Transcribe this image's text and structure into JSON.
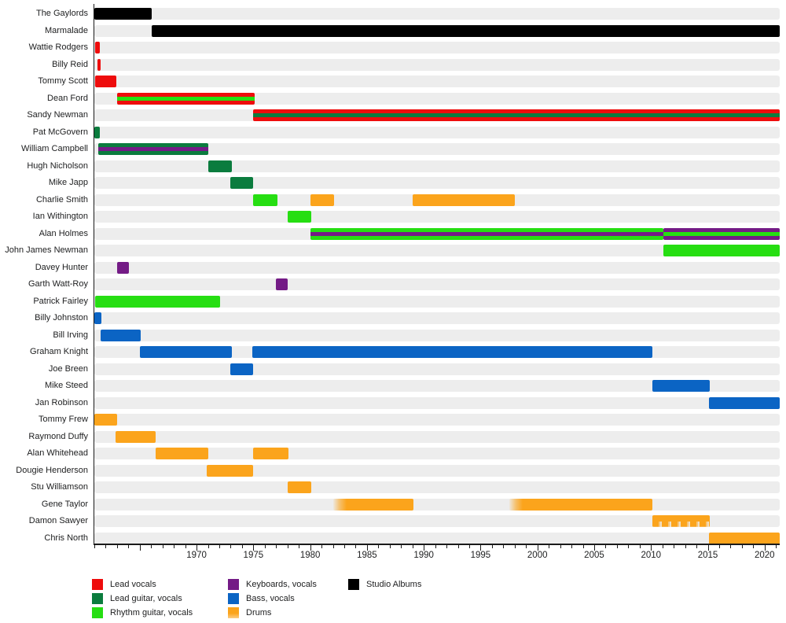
{
  "chart_data": {
    "type": "bar",
    "variant": "timeline_gantt",
    "description": "Band members timeline (Gantt-style) with roles shown by bar colors and studio album eras in black",
    "x_axis": {
      "min": 1961,
      "max": 2021.3,
      "labeled_ticks": [
        "1970",
        "1975",
        "1980",
        "1985",
        "1990",
        "1995",
        "2000",
        "2005",
        "2010",
        "2015",
        "2020"
      ],
      "labeled_tick_years": [
        1970,
        1975,
        1980,
        1985,
        1990,
        1995,
        2000,
        2005,
        2010,
        2015,
        2020
      ],
      "minor_tick_every": 1
    },
    "palette": {
      "black": "#000000",
      "red": "#ee0c0c",
      "darkgreen": "#0b7c3e",
      "lime": "#26de12",
      "purple": "#741b86",
      "blue": "#0b64c4",
      "orange": "#fba41c",
      "track": "#ededed",
      "axis": "#1a1a1a",
      "text": "#202122"
    },
    "legend": [
      {
        "label": "Lead vocals",
        "color": "red",
        "col": 0,
        "row": 0
      },
      {
        "label": "Lead guitar, vocals",
        "color": "darkgreen",
        "col": 0,
        "row": 1
      },
      {
        "label": "Rhythm guitar, vocals",
        "color": "lime",
        "col": 0,
        "row": 2
      },
      {
        "label": "Keyboards, vocals",
        "color": "purple",
        "col": 1,
        "row": 0
      },
      {
        "label": "Bass, vocals",
        "color": "blue",
        "col": 1,
        "row": 1
      },
      {
        "label": "Drums",
        "color": "orange",
        "col": 1,
        "row": 2
      },
      {
        "label": "Studio Albums",
        "color": "black",
        "col": 2,
        "row": 0
      }
    ],
    "rows": [
      {
        "name": "The Gaylords",
        "segments": [
          {
            "from": 1961,
            "to": 1966.05,
            "color": "black"
          }
        ]
      },
      {
        "name": "Marmalade",
        "segments": [
          {
            "from": 1966.05,
            "to": 2021.3,
            "color": "black"
          }
        ]
      },
      {
        "name": "Wattie Rodgers",
        "segments": [
          {
            "from": 1961.05,
            "to": 1961.45,
            "color": "red"
          }
        ]
      },
      {
        "name": "Billy Reid",
        "segments": [
          {
            "from": 1961.25,
            "to": 1961.55,
            "color": "red"
          }
        ]
      },
      {
        "name": "Tommy Scott",
        "segments": [
          {
            "from": 1961.1,
            "to": 1962.95,
            "color": "red"
          }
        ]
      },
      {
        "name": "Dean Ford",
        "segments": [
          {
            "from": 1963,
            "to": 1975.1,
            "color": "red",
            "stripe": "lime"
          }
        ]
      },
      {
        "name": "Sandy Newman",
        "segments": [
          {
            "from": 1975,
            "to": 2021.3,
            "color": "red",
            "stripe": "darkgreen"
          }
        ]
      },
      {
        "name": "Pat McGovern",
        "segments": [
          {
            "from": 1961,
            "to": 1961.45,
            "color": "darkgreen"
          }
        ]
      },
      {
        "name": "William Campbell",
        "segments": [
          {
            "from": 1961.35,
            "to": 1971,
            "color": "darkgreen",
            "stripe": "purple"
          }
        ]
      },
      {
        "name": "Hugh Nicholson",
        "segments": [
          {
            "from": 1971,
            "to": 1973.1,
            "color": "darkgreen"
          }
        ]
      },
      {
        "name": "Mike Japp",
        "segments": [
          {
            "from": 1973,
            "to": 1975,
            "color": "darkgreen"
          }
        ]
      },
      {
        "name": "Charlie Smith",
        "segments": [
          {
            "from": 1975,
            "to": 1977.1,
            "color": "lime"
          },
          {
            "from": 1980,
            "to": 1982.1,
            "color": "orange"
          },
          {
            "from": 1989,
            "to": 1998,
            "color": "orange"
          }
        ]
      },
      {
        "name": "Ian Withington",
        "segments": [
          {
            "from": 1978,
            "to": 1980.1,
            "color": "lime"
          }
        ]
      },
      {
        "name": "Alan Holmes",
        "segments": [
          {
            "from": 1980,
            "to": 2011.1,
            "color": "lime",
            "stripe": "purple"
          },
          {
            "from": 2011.1,
            "to": 2021.3,
            "color": "purple",
            "stripe": "lime"
          }
        ]
      },
      {
        "name": "John James Newman",
        "segments": [
          {
            "from": 2011.1,
            "to": 2021.3,
            "color": "lime"
          }
        ]
      },
      {
        "name": "Davey Hunter",
        "segments": [
          {
            "from": 1963,
            "to": 1964.05,
            "color": "purple"
          }
        ]
      },
      {
        "name": "Garth Watt-Roy",
        "segments": [
          {
            "from": 1977,
            "to": 1978,
            "color": "purple"
          }
        ]
      },
      {
        "name": "Patrick Fairley",
        "segments": [
          {
            "from": 1961.1,
            "to": 1972.1,
            "color": "lime"
          }
        ]
      },
      {
        "name": "Billy Johnston",
        "segments": [
          {
            "from": 1961,
            "to": 1961.6,
            "color": "blue"
          }
        ]
      },
      {
        "name": "Bill Irving",
        "segments": [
          {
            "from": 1961.55,
            "to": 1965.1,
            "color": "blue"
          }
        ]
      },
      {
        "name": "Graham Knight",
        "segments": [
          {
            "from": 1965,
            "to": 1973.1,
            "color": "blue"
          },
          {
            "from": 1974.9,
            "to": 2010.15,
            "color": "blue"
          }
        ]
      },
      {
        "name": "Joe Breen",
        "segments": [
          {
            "from": 1973,
            "to": 1975,
            "color": "blue"
          }
        ]
      },
      {
        "name": "Mike Steed",
        "segments": [
          {
            "from": 2010.1,
            "to": 2015.15,
            "color": "blue"
          }
        ]
      },
      {
        "name": "Jan Robinson",
        "segments": [
          {
            "from": 2015.1,
            "to": 2021.3,
            "color": "blue"
          }
        ]
      },
      {
        "name": "Tommy Frew",
        "segments": [
          {
            "from": 1961,
            "to": 1963,
            "color": "orange"
          }
        ]
      },
      {
        "name": "Raymond Duffy",
        "segments": [
          {
            "from": 1962.9,
            "to": 1966.4,
            "color": "orange"
          }
        ]
      },
      {
        "name": "Alan Whitehead",
        "segments": [
          {
            "from": 1966.4,
            "to": 1971,
            "color": "orange"
          },
          {
            "from": 1975,
            "to": 1978.1,
            "color": "orange"
          }
        ]
      },
      {
        "name": "Dougie Henderson",
        "segments": [
          {
            "from": 1970.9,
            "to": 1975,
            "color": "orange"
          }
        ]
      },
      {
        "name": "Stu Williamson",
        "segments": [
          {
            "from": 1978,
            "to": 1980.1,
            "color": "orange"
          }
        ]
      },
      {
        "name": "Gene Taylor",
        "segments": [
          {
            "from": 1982,
            "to": 1989.1,
            "color": "orange",
            "fade": "left"
          },
          {
            "from": 1997.5,
            "to": 2010.15,
            "color": "orange",
            "fade": "left"
          }
        ]
      },
      {
        "name": "Damon Sawyer",
        "segments": [
          {
            "from": 2010.1,
            "to": 2015.15,
            "color": "orange",
            "fade": "bottom"
          }
        ]
      },
      {
        "name": "Chris North",
        "segments": [
          {
            "from": 2015.1,
            "to": 2021.3,
            "color": "orange"
          }
        ]
      }
    ]
  }
}
